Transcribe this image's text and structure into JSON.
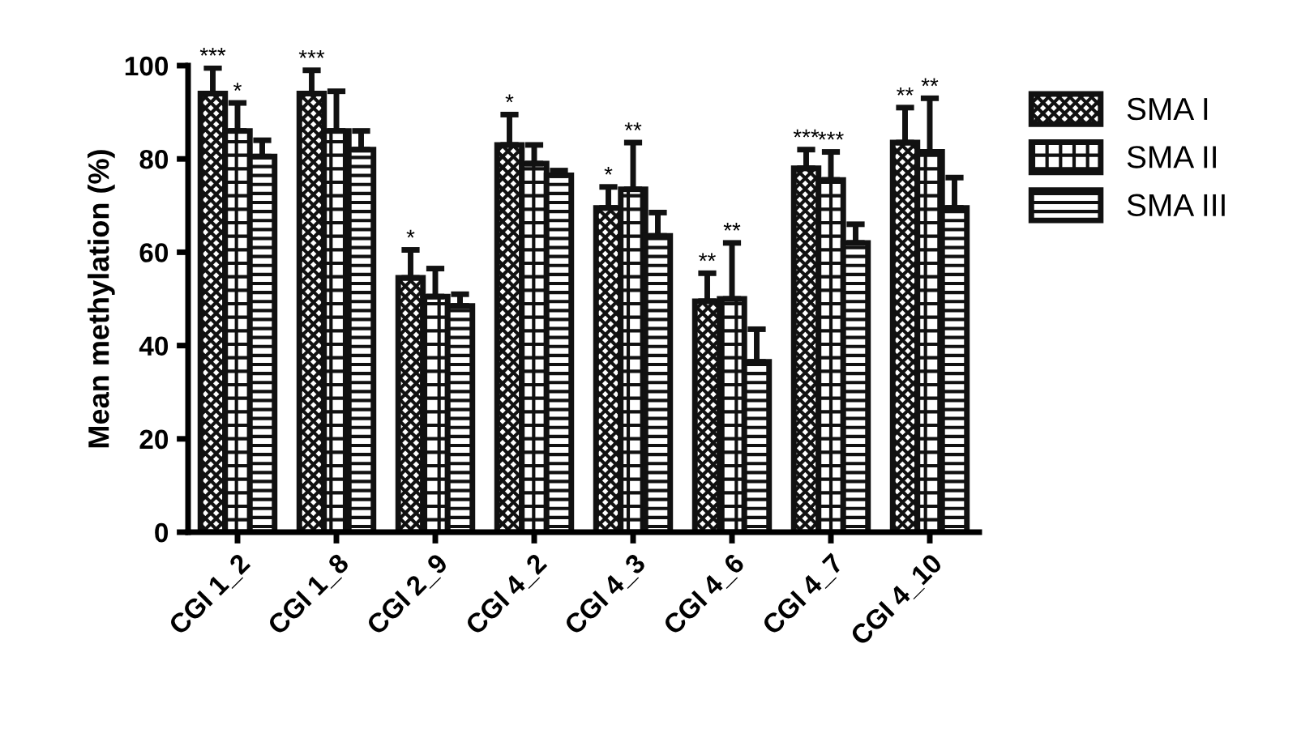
{
  "chart_data": {
    "type": "bar",
    "ylabel": "Mean methylation (%)",
    "categories": [
      "CGI 1_2",
      "CGI 1_8",
      "CGI 2_9",
      "CGI 4_2",
      "CGI 4_3",
      "CGI 4_6",
      "CGI 4_7",
      "CGI 4_10"
    ],
    "series": [
      {
        "name": "SMA I",
        "color": "#111111",
        "values": [
          94,
          94,
          54.5,
          83,
          69.5,
          49.5,
          78,
          83.5
        ],
        "errors": [
          [
            94,
            99.5
          ],
          [
            94,
            99
          ],
          [
            54.5,
            60.5
          ],
          [
            83,
            89.5
          ],
          [
            69.5,
            74
          ],
          [
            49.5,
            55.5
          ],
          [
            78,
            82
          ],
          [
            83.5,
            91
          ]
        ]
      },
      {
        "name": "SMA II",
        "color": "#111111",
        "values": [
          86,
          86,
          50.5,
          79,
          73.5,
          50,
          75.5,
          81.5
        ],
        "errors": [
          [
            86,
            92
          ],
          [
            86,
            94.5
          ],
          [
            50.5,
            56.5
          ],
          [
            79,
            83
          ],
          [
            73.5,
            83.5
          ],
          [
            50,
            62
          ],
          [
            75.5,
            81.5
          ],
          [
            81.5,
            93
          ]
        ]
      },
      {
        "name": "SMA III",
        "color": "#111111",
        "values": [
          80.5,
          82,
          48.5,
          76.5,
          63.5,
          36.5,
          62,
          69.5
        ],
        "errors": [
          [
            80.5,
            84
          ],
          [
            82,
            86
          ],
          [
            48.5,
            51
          ],
          [
            76.5,
            77.5
          ],
          [
            63.5,
            68.5
          ],
          [
            36.5,
            43.5
          ],
          [
            62,
            66
          ],
          [
            69.5,
            76
          ]
        ]
      }
    ],
    "ylim": [
      0,
      100
    ],
    "yticks": [
      0,
      20,
      40,
      60,
      80,
      100
    ],
    "grid": false,
    "legend": "top right",
    "annotations": [
      "***",
      "*",
      "***",
      "*",
      "*",
      "*",
      "**",
      "**",
      "**",
      "***",
      "***",
      "**",
      "**"
    ]
  }
}
